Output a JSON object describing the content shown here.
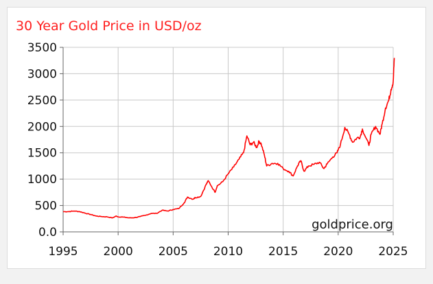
{
  "chart_data": {
    "type": "line",
    "title": "30 Year Gold Price in USD/oz",
    "watermark": "goldprice.org",
    "xlabel": "",
    "ylabel": "",
    "xlim": [
      1995,
      2025
    ],
    "ylim": [
      0,
      3500
    ],
    "x_ticks": [
      1995,
      2000,
      2005,
      2010,
      2015,
      2020,
      2025
    ],
    "x_tick_labels": [
      "1995",
      "2000",
      "2005",
      "2010",
      "2015",
      "2020",
      "2025"
    ],
    "y_ticks": [
      0,
      500,
      1000,
      1500,
      2000,
      2500,
      3000,
      3500
    ],
    "y_tick_labels": [
      "0.0",
      "500",
      "1000",
      "1500",
      "2000",
      "2500",
      "3000",
      "3500"
    ],
    "grid": true,
    "legend": "none",
    "colors": {
      "line": "#ff0000",
      "title": "#ff2020",
      "grid": "#c8c8c8",
      "axis": "#666666"
    },
    "series": [
      {
        "values": [
          {
            "x": 1995.0,
            "y": 383
          },
          {
            "x": 1995.5,
            "y": 385
          },
          {
            "x": 1996.0,
            "y": 395
          },
          {
            "x": 1996.5,
            "y": 385
          },
          {
            "x": 1997.0,
            "y": 355
          },
          {
            "x": 1997.5,
            "y": 330
          },
          {
            "x": 1998.0,
            "y": 300
          },
          {
            "x": 1998.5,
            "y": 290
          },
          {
            "x": 1999.0,
            "y": 285
          },
          {
            "x": 1999.5,
            "y": 265
          },
          {
            "x": 1999.8,
            "y": 300
          },
          {
            "x": 2000.0,
            "y": 285
          },
          {
            "x": 2000.5,
            "y": 280
          },
          {
            "x": 2001.0,
            "y": 265
          },
          {
            "x": 2001.5,
            "y": 270
          },
          {
            "x": 2002.0,
            "y": 290
          },
          {
            "x": 2002.5,
            "y": 315
          },
          {
            "x": 2003.0,
            "y": 350
          },
          {
            "x": 2003.5,
            "y": 350
          },
          {
            "x": 2004.0,
            "y": 410
          },
          {
            "x": 2004.5,
            "y": 395
          },
          {
            "x": 2005.0,
            "y": 425
          },
          {
            "x": 2005.5,
            "y": 440
          },
          {
            "x": 2006.0,
            "y": 550
          },
          {
            "x": 2006.3,
            "y": 660
          },
          {
            "x": 2006.8,
            "y": 620
          },
          {
            "x": 2007.0,
            "y": 650
          },
          {
            "x": 2007.5,
            "y": 670
          },
          {
            "x": 2008.0,
            "y": 900
          },
          {
            "x": 2008.2,
            "y": 970
          },
          {
            "x": 2008.8,
            "y": 750
          },
          {
            "x": 2009.0,
            "y": 870
          },
          {
            "x": 2009.5,
            "y": 950
          },
          {
            "x": 2010.0,
            "y": 1100
          },
          {
            "x": 2010.5,
            "y": 1230
          },
          {
            "x": 2011.0,
            "y": 1380
          },
          {
            "x": 2011.4,
            "y": 1500
          },
          {
            "x": 2011.7,
            "y": 1820
          },
          {
            "x": 2012.0,
            "y": 1650
          },
          {
            "x": 2012.3,
            "y": 1700
          },
          {
            "x": 2012.6,
            "y": 1600
          },
          {
            "x": 2012.8,
            "y": 1720
          },
          {
            "x": 2013.0,
            "y": 1670
          },
          {
            "x": 2013.3,
            "y": 1450
          },
          {
            "x": 2013.5,
            "y": 1250
          },
          {
            "x": 2014.0,
            "y": 1300
          },
          {
            "x": 2014.5,
            "y": 1300
          },
          {
            "x": 2015.0,
            "y": 1200
          },
          {
            "x": 2015.5,
            "y": 1150
          },
          {
            "x": 2015.9,
            "y": 1060
          },
          {
            "x": 2016.3,
            "y": 1250
          },
          {
            "x": 2016.6,
            "y": 1350
          },
          {
            "x": 2016.9,
            "y": 1150
          },
          {
            "x": 2017.3,
            "y": 1250
          },
          {
            "x": 2017.8,
            "y": 1280
          },
          {
            "x": 2018.3,
            "y": 1320
          },
          {
            "x": 2018.7,
            "y": 1200
          },
          {
            "x": 2019.0,
            "y": 1290
          },
          {
            "x": 2019.5,
            "y": 1420
          },
          {
            "x": 2019.9,
            "y": 1500
          },
          {
            "x": 2020.2,
            "y": 1650
          },
          {
            "x": 2020.6,
            "y": 1980
          },
          {
            "x": 2021.0,
            "y": 1850
          },
          {
            "x": 2021.3,
            "y": 1700
          },
          {
            "x": 2021.7,
            "y": 1780
          },
          {
            "x": 2022.0,
            "y": 1800
          },
          {
            "x": 2022.2,
            "y": 1950
          },
          {
            "x": 2022.8,
            "y": 1640
          },
          {
            "x": 2023.0,
            "y": 1850
          },
          {
            "x": 2023.4,
            "y": 2000
          },
          {
            "x": 2023.8,
            "y": 1850
          },
          {
            "x": 2024.0,
            "y": 2050
          },
          {
            "x": 2024.3,
            "y": 2350
          },
          {
            "x": 2024.6,
            "y": 2500
          },
          {
            "x": 2024.8,
            "y": 2700
          },
          {
            "x": 2025.0,
            "y": 2850
          },
          {
            "x": 2025.1,
            "y": 3300
          }
        ]
      }
    ]
  }
}
